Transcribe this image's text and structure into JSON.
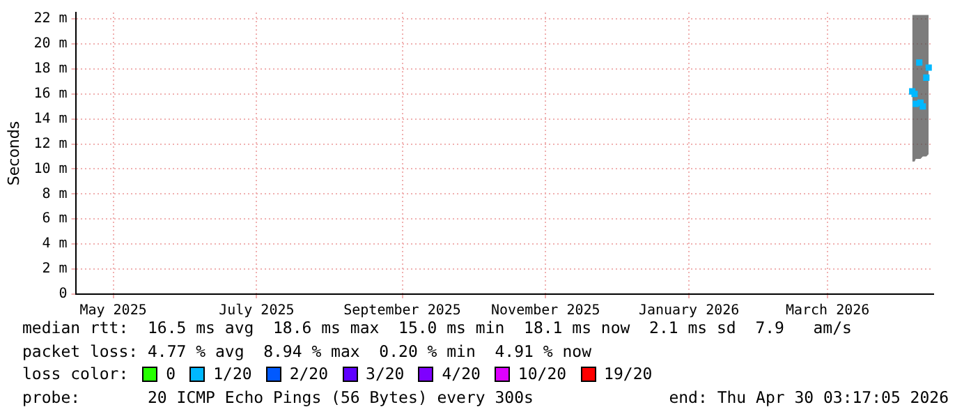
{
  "chart_data": {
    "type": "scatter",
    "ylabel": "Seconds",
    "legend_title": "loss color:",
    "legend": "bottom",
    "grid": true,
    "marker": "square",
    "xlim": [
      "2025-04-30",
      "2026-04-30"
    ],
    "xticks": [
      {
        "value": "2025-05-16",
        "label": "May 2025"
      },
      {
        "value": "2025-07-16",
        "label": "July 2025"
      },
      {
        "value": "2025-09-16",
        "label": "September 2025"
      },
      {
        "value": "2025-11-16",
        "label": "November 2025"
      },
      {
        "value": "2026-01-16",
        "label": "January 2026"
      },
      {
        "value": "2026-03-16",
        "label": "March 2026"
      }
    ],
    "ylim": [
      0,
      22.5
    ],
    "yticks": [
      0,
      {
        "value": 2,
        "label": "2 m"
      },
      {
        "value": 4,
        "label": "4 m"
      },
      {
        "value": 6,
        "label": "6 m"
      },
      {
        "value": 8,
        "label": "8 m"
      },
      {
        "value": 10,
        "label": "10 m"
      },
      {
        "value": 12,
        "label": "12 m"
      },
      {
        "value": 14,
        "label": "14 m"
      },
      {
        "value": 16,
        "label": "16 m"
      },
      {
        "value": 18,
        "label": "18 m"
      },
      {
        "value": 20,
        "label": "20 m"
      },
      {
        "value": 22,
        "label": "22 m"
      }
    ],
    "series": [
      {
        "name": "0",
        "color": "#26ff00"
      },
      {
        "name": "1/20",
        "color": "#00b8ff",
        "x": [
          "2026-04-21",
          "2026-04-22",
          "2026-04-22T12:00",
          "2026-04-24",
          "2026-04-24T12:00",
          "2026-04-25T12:00",
          "2026-04-27",
          "2026-04-28"
        ],
        "values": [
          16.2,
          16.0,
          15.2,
          18.5,
          15.3,
          15.0,
          17.3,
          18.1
        ],
        "lower": [
          10.6,
          10.6,
          10.8,
          10.8,
          10.8,
          11.0,
          11.0,
          11.2
        ],
        "upper": [
          22.3,
          22.3,
          22.3,
          22.3,
          22.3,
          22.3,
          22.3,
          22.3
        ]
      },
      {
        "name": "2/20",
        "color": "#0059ff"
      },
      {
        "name": "3/20",
        "color": "#5e00ff"
      },
      {
        "name": "4/20",
        "color": "#7e00ff"
      },
      {
        "name": "10/20",
        "color": "#dd00ff"
      },
      {
        "name": "19/20",
        "color": "#ff0000"
      }
    ],
    "annotations": [
      "median rtt:  16.5 ms avg  18.6 ms max  15.0 ms min  18.1 ms now  2.1 ms sd  7.9   am/s",
      "packet loss: 4.77 % avg  8.94 % max  0.20 % min  4.91 % now",
      "probe:       20 ICMP Echo Pings (56 Bytes) every 300s",
      "end: Thu Apr 30 03:17:05 2026"
    ]
  }
}
